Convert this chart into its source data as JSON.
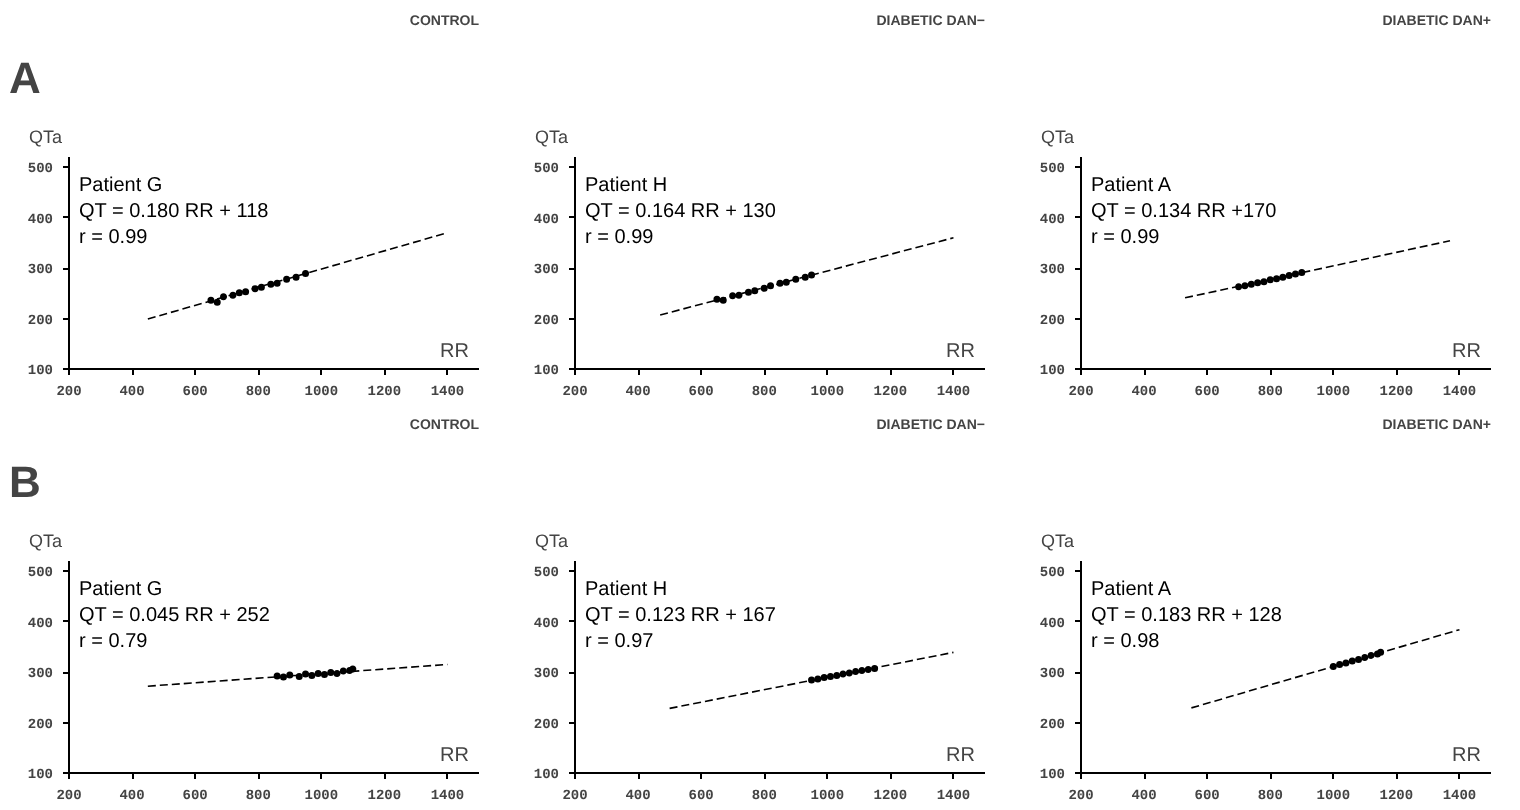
{
  "chart_data": [
    {
      "type": "scatter",
      "subtitle": "A",
      "title": "CONTROL",
      "xlabel": "RR",
      "ylabel": "QTa",
      "annotations": [
        "Patient G",
        "QT = 0.180 RR + 118",
        "r = 0.99"
      ],
      "xlim": [
        200,
        1500
      ],
      "ylim": [
        100,
        520
      ],
      "xticks": [
        200,
        400,
        600,
        800,
        1000,
        1200,
        1400
      ],
      "yticks": [
        100,
        200,
        300,
        400,
        500
      ],
      "grid": false,
      "series": [
        {
          "marker": "circle",
          "color": "#000000",
          "x": [
            650,
            670,
            690,
            720,
            740,
            760,
            790,
            810,
            840,
            860,
            890,
            920,
            950
          ],
          "values": [
            236,
            232,
            243,
            246,
            251,
            253,
            259,
            262,
            268,
            270,
            278,
            282,
            289
          ]
        },
        {
          "type": "line",
          "line_style": "dashed",
          "color": "#000000",
          "x": [
            450,
            1400
          ],
          "values": [
            199,
            370
          ]
        }
      ]
    },
    {
      "type": "scatter",
      "title": "DIABETIC DAN−",
      "xlabel": "RR",
      "ylabel": "QTa",
      "annotations": [
        "Patient H",
        "QT = 0.164 RR + 130",
        "r = 0.99"
      ],
      "xlim": [
        200,
        1500
      ],
      "ylim": [
        100,
        520
      ],
      "xticks": [
        200,
        400,
        600,
        800,
        1000,
        1200,
        1400
      ],
      "yticks": [
        100,
        200,
        300,
        400,
        500
      ],
      "grid": false,
      "series": [
        {
          "marker": "circle",
          "color": "#000000",
          "x": [
            650,
            670,
            700,
            720,
            750,
            770,
            800,
            820,
            850,
            870,
            900,
            930,
            950
          ],
          "values": [
            238,
            236,
            245,
            246,
            252,
            255,
            260,
            265,
            270,
            272,
            278,
            282,
            286
          ]
        },
        {
          "type": "line",
          "line_style": "dashed",
          "color": "#000000",
          "x": [
            470,
            1400
          ],
          "values": [
            207,
            360
          ]
        }
      ]
    },
    {
      "type": "scatter",
      "title": "DIABETIC DAN+",
      "xlabel": "RR",
      "ylabel": "QTa",
      "annotations": [
        "Patient A",
        "QT = 0.134 RR +170",
        "r = 0.99"
      ],
      "xlim": [
        200,
        1500
      ],
      "ylim": [
        100,
        520
      ],
      "xticks": [
        200,
        400,
        600,
        800,
        1000,
        1200,
        1400
      ],
      "yticks": [
        100,
        200,
        300,
        400,
        500
      ],
      "grid": false,
      "series": [
        {
          "marker": "circle",
          "color": "#000000",
          "x": [
            700,
            720,
            740,
            760,
            780,
            800,
            820,
            840,
            860,
            880,
            900
          ],
          "values": [
            263,
            265,
            268,
            271,
            273,
            277,
            279,
            282,
            285,
            288,
            291
          ]
        },
        {
          "type": "line",
          "line_style": "dashed",
          "color": "#000000",
          "x": [
            530,
            1370
          ],
          "values": [
            241,
            354
          ]
        }
      ]
    },
    {
      "type": "scatter",
      "subtitle": "B",
      "title": "CONTROL",
      "xlabel": "RR",
      "ylabel": "QTa",
      "annotations": [
        "Patient G",
        "QT = 0.045 RR + 252",
        "r = 0.79"
      ],
      "xlim": [
        200,
        1500
      ],
      "ylim": [
        100,
        520
      ],
      "xticks": [
        200,
        400,
        600,
        800,
        1000,
        1200,
        1400
      ],
      "yticks": [
        100,
        200,
        300,
        400,
        500
      ],
      "grid": false,
      "series": [
        {
          "marker": "circle",
          "color": "#000000",
          "x": [
            860,
            880,
            900,
            930,
            950,
            970,
            990,
            1010,
            1030,
            1050,
            1070,
            1090,
            1100
          ],
          "values": [
            292,
            290,
            294,
            291,
            296,
            293,
            297,
            295,
            299,
            297,
            302,
            303,
            306
          ]
        },
        {
          "type": "line",
          "line_style": "dashed",
          "color": "#000000",
          "x": [
            450,
            1400
          ],
          "values": [
            272,
            315
          ]
        }
      ]
    },
    {
      "type": "scatter",
      "title": "DIABETIC DAN−",
      "xlabel": "RR",
      "ylabel": "QTa",
      "annotations": [
        "Patient H",
        "QT = 0.123 RR + 167",
        "r = 0.97"
      ],
      "xlim": [
        200,
        1500
      ],
      "ylim": [
        100,
        520
      ],
      "xticks": [
        200,
        400,
        600,
        800,
        1000,
        1200,
        1400
      ],
      "yticks": [
        100,
        200,
        300,
        400,
        500
      ],
      "grid": false,
      "series": [
        {
          "marker": "circle",
          "color": "#000000",
          "x": [
            950,
            970,
            990,
            1010,
            1030,
            1050,
            1070,
            1090,
            1110,
            1130,
            1150
          ],
          "values": [
            284,
            286,
            289,
            291,
            293,
            296,
            298,
            301,
            303,
            305,
            307
          ]
        },
        {
          "type": "line",
          "line_style": "dashed",
          "color": "#000000",
          "x": [
            500,
            1400
          ],
          "values": [
            228,
            339
          ]
        }
      ]
    },
    {
      "type": "scatter",
      "title": "DIABETIC DAN+",
      "xlabel": "RR",
      "ylabel": "QTa",
      "annotations": [
        "Patient A",
        "QT = 0.183 RR + 128",
        "r = 0.98"
      ],
      "xlim": [
        200,
        1500
      ],
      "ylim": [
        100,
        520
      ],
      "xticks": [
        200,
        400,
        600,
        800,
        1000,
        1200,
        1400
      ],
      "yticks": [
        100,
        200,
        300,
        400,
        500
      ],
      "grid": false,
      "series": [
        {
          "marker": "circle",
          "color": "#000000",
          "x": [
            1000,
            1020,
            1040,
            1060,
            1080,
            1100,
            1120,
            1140,
            1150
          ],
          "values": [
            311,
            315,
            318,
            322,
            325,
            329,
            333,
            336,
            339
          ]
        },
        {
          "type": "line",
          "line_style": "dashed",
          "color": "#000000",
          "x": [
            550,
            1400
          ],
          "values": [
            229,
            384
          ]
        }
      ]
    }
  ]
}
